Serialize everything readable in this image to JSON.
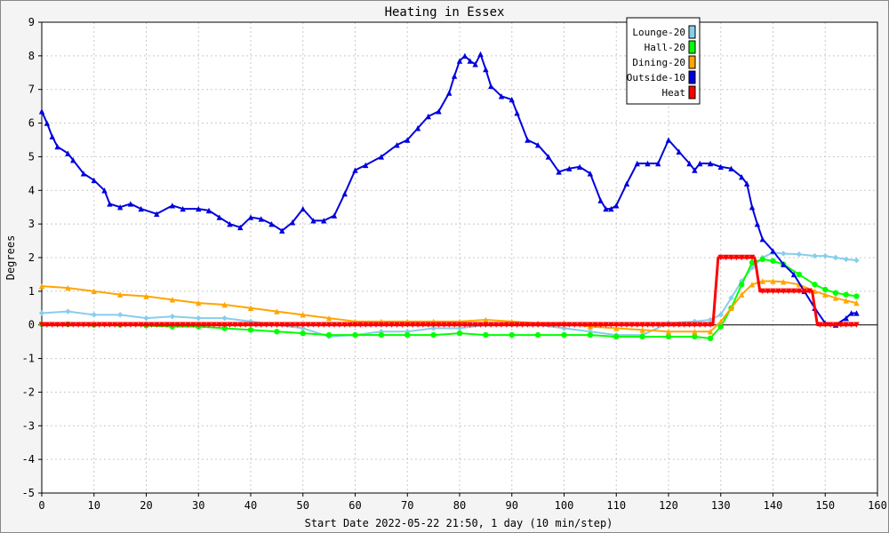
{
  "chart_data": {
    "type": "line",
    "title": "Heating in Essex",
    "xlabel": "Start Date 2022-05-22 21:50, 1 day (10 min/step)",
    "ylabel": "Degrees",
    "xlim": [
      0,
      160
    ],
    "ylim": [
      -5,
      9
    ],
    "x_ticks": [
      0,
      10,
      20,
      30,
      40,
      50,
      60,
      70,
      80,
      90,
      100,
      110,
      120,
      130,
      140,
      150,
      160
    ],
    "y_ticks": [
      -5,
      -4,
      -3,
      -2,
      -1,
      0,
      1,
      2,
      3,
      4,
      5,
      6,
      7,
      8,
      9
    ],
    "grid": true,
    "legend_position": "top-right",
    "series": [
      {
        "name": "Lounge-20",
        "color": "#87ceeb",
        "marker": "diamond",
        "x": [
          0,
          5,
          10,
          15,
          20,
          25,
          30,
          35,
          40,
          45,
          50,
          55,
          60,
          65,
          70,
          75,
          80,
          85,
          90,
          95,
          100,
          105,
          110,
          115,
          120,
          125,
          128,
          130,
          132,
          134,
          136,
          138,
          140,
          142,
          145,
          148,
          150,
          152,
          154,
          156
        ],
        "values": [
          0.35,
          0.4,
          0.3,
          0.3,
          0.2,
          0.25,
          0.2,
          0.2,
          0.1,
          0.0,
          -0.1,
          -0.35,
          -0.3,
          -0.2,
          -0.2,
          -0.1,
          -0.1,
          0.0,
          0.0,
          0.0,
          -0.1,
          -0.2,
          -0.3,
          -0.3,
          0.05,
          0.1,
          0.15,
          0.3,
          0.8,
          1.3,
          1.7,
          2.0,
          2.15,
          2.12,
          2.1,
          2.05,
          2.05,
          2.0,
          1.95,
          1.92
        ]
      },
      {
        "name": "Hall-20",
        "color": "#00ff00",
        "marker": "circle",
        "x": [
          0,
          5,
          10,
          15,
          20,
          25,
          30,
          35,
          40,
          45,
          50,
          55,
          60,
          65,
          70,
          75,
          80,
          85,
          90,
          95,
          100,
          105,
          110,
          115,
          120,
          125,
          128,
          130,
          132,
          134,
          136,
          138,
          140,
          142,
          145,
          148,
          150,
          152,
          154,
          156
        ],
        "values": [
          0.02,
          0.02,
          0.0,
          0.0,
          -0.02,
          -0.05,
          -0.05,
          -0.1,
          -0.15,
          -0.2,
          -0.25,
          -0.3,
          -0.3,
          -0.3,
          -0.3,
          -0.3,
          -0.25,
          -0.3,
          -0.3,
          -0.3,
          -0.3,
          -0.3,
          -0.35,
          -0.35,
          -0.35,
          -0.35,
          -0.4,
          -0.05,
          0.5,
          1.2,
          1.85,
          1.95,
          1.9,
          1.8,
          1.5,
          1.2,
          1.05,
          0.95,
          0.9,
          0.85
        ]
      },
      {
        "name": "Dining-20",
        "color": "#ffa500",
        "marker": "triangle",
        "x": [
          0,
          5,
          10,
          15,
          20,
          25,
          30,
          35,
          40,
          45,
          50,
          55,
          60,
          65,
          70,
          75,
          80,
          85,
          90,
          95,
          100,
          105,
          110,
          115,
          120,
          125,
          128,
          130,
          132,
          134,
          136,
          138,
          140,
          142,
          145,
          148,
          150,
          152,
          154,
          156
        ],
        "values": [
          1.15,
          1.1,
          1.0,
          0.9,
          0.85,
          0.75,
          0.65,
          0.6,
          0.5,
          0.4,
          0.3,
          0.2,
          0.1,
          0.1,
          0.1,
          0.1,
          0.1,
          0.15,
          0.1,
          0.05,
          0.05,
          -0.05,
          -0.1,
          -0.15,
          -0.2,
          -0.2,
          -0.2,
          0.1,
          0.5,
          0.9,
          1.2,
          1.3,
          1.3,
          1.28,
          1.2,
          1.0,
          0.9,
          0.8,
          0.72,
          0.65
        ]
      },
      {
        "name": "Outside-10",
        "color": "#0000dd",
        "marker": "triangle",
        "x": [
          0,
          1,
          2,
          3,
          5,
          6,
          8,
          10,
          12,
          13,
          15,
          17,
          19,
          22,
          25,
          27,
          30,
          32,
          34,
          36,
          38,
          40,
          42,
          44,
          46,
          48,
          50,
          52,
          54,
          56,
          58,
          60,
          62,
          65,
          68,
          70,
          72,
          74,
          76,
          78,
          79,
          80,
          81,
          82,
          83,
          84,
          85,
          86,
          88,
          90,
          91,
          93,
          95,
          97,
          99,
          101,
          103,
          105,
          107,
          108,
          109,
          110,
          112,
          114,
          116,
          118,
          120,
          122,
          124,
          125,
          126,
          128,
          130,
          132,
          134,
          135,
          136,
          137,
          138,
          140,
          142,
          144,
          146,
          148,
          150,
          152,
          154,
          155,
          156
        ],
        "values": [
          6.35,
          6.0,
          5.6,
          5.3,
          5.1,
          4.9,
          4.5,
          4.3,
          4.0,
          3.6,
          3.5,
          3.6,
          3.45,
          3.3,
          3.55,
          3.45,
          3.45,
          3.4,
          3.2,
          3.0,
          2.9,
          3.2,
          3.15,
          3.0,
          2.8,
          3.05,
          3.45,
          3.1,
          3.1,
          3.25,
          3.9,
          4.6,
          4.75,
          5.0,
          5.35,
          5.5,
          5.85,
          6.2,
          6.35,
          6.9,
          7.4,
          7.85,
          8.0,
          7.85,
          7.75,
          8.05,
          7.6,
          7.1,
          6.8,
          6.7,
          6.3,
          5.5,
          5.35,
          5.0,
          4.55,
          4.65,
          4.7,
          4.5,
          3.7,
          3.45,
          3.45,
          3.55,
          4.2,
          4.8,
          4.8,
          4.8,
          5.5,
          5.15,
          4.8,
          4.6,
          4.8,
          4.8,
          4.7,
          4.65,
          4.4,
          4.2,
          3.5,
          3.0,
          2.55,
          2.2,
          1.8,
          1.5,
          1.0,
          0.5,
          0.05,
          0.0,
          0.2,
          0.35,
          0.35
        ]
      },
      {
        "name": "Heat",
        "color": "#ff0000",
        "marker": "triangle-down",
        "x": [
          0,
          128.5,
          129.5,
          136.5,
          137.5,
          147.5,
          148.5,
          156
        ],
        "values": [
          0,
          0,
          2,
          2,
          1,
          1,
          0,
          0
        ]
      }
    ]
  }
}
